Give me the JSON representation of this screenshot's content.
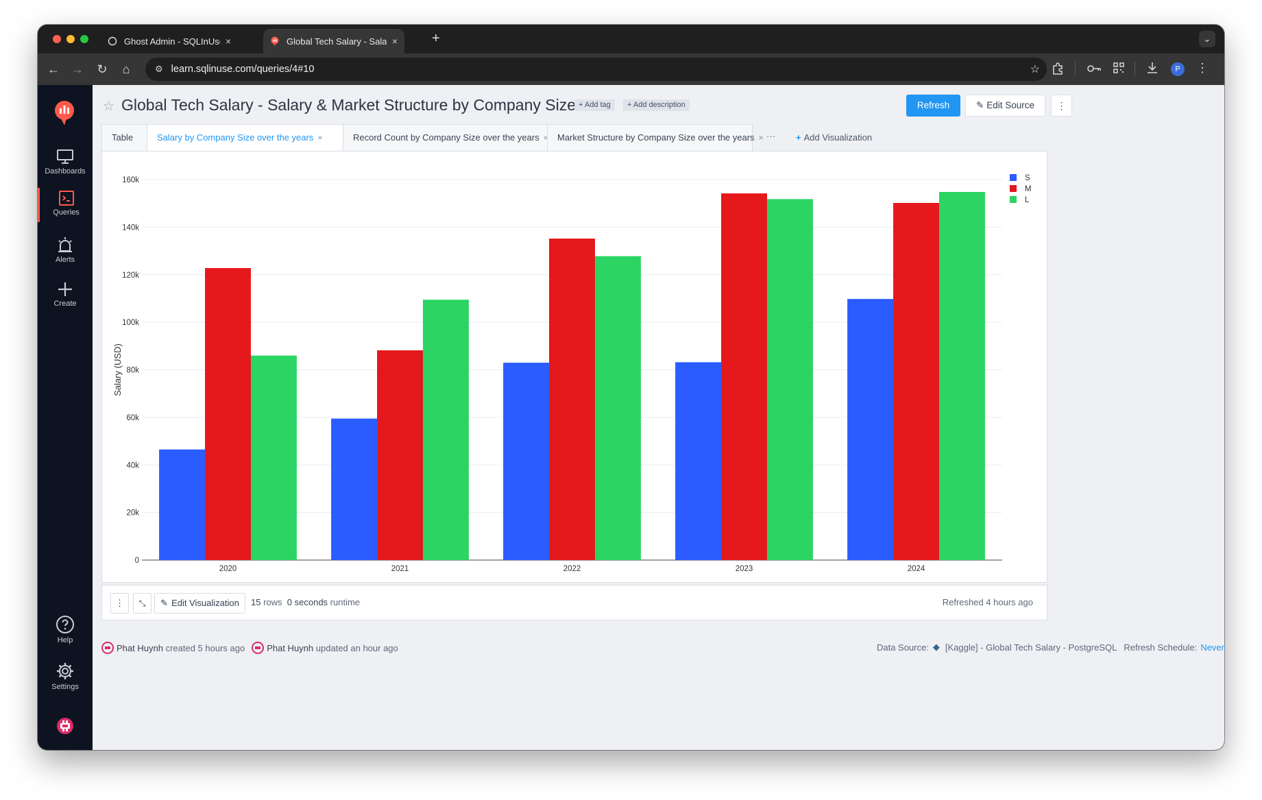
{
  "browser": {
    "tabs": [
      {
        "title": "Ghost Admin - SQLInUse",
        "close": "×"
      },
      {
        "title": "Global Tech Salary - Salary &",
        "close": "×"
      }
    ],
    "new_tab": "+",
    "url": "learn.sqlinuse.com/queries/4#10",
    "profile_initial": "P"
  },
  "sidebar": {
    "items": [
      {
        "label": "Dashboards",
        "icon": "monitor-icon"
      },
      {
        "label": "Queries",
        "icon": "terminal-icon"
      },
      {
        "label": "Alerts",
        "icon": "alarm-icon"
      },
      {
        "label": "Create",
        "icon": "plus-icon"
      },
      {
        "label": "Help",
        "icon": "question-icon"
      },
      {
        "label": "Settings",
        "icon": "gear-icon"
      }
    ],
    "accent": "#ff5a4b"
  },
  "header": {
    "title": "Global Tech Salary - Salary & Market Structure by Company Size",
    "add_tag": "+ Add tag",
    "add_description": "+ Add description",
    "refresh": "Refresh",
    "edit_source": "Edit Source"
  },
  "viz_tabs": {
    "tabs": [
      {
        "label": "Table"
      },
      {
        "label": "Salary by Company Size over the years",
        "close": "×"
      },
      {
        "label": "Record Count by Company Size over the years",
        "close": "×"
      },
      {
        "label": "Market Structure by Company Size over the years",
        "close": "×"
      }
    ],
    "more": "···",
    "add_visualization": "Add Visualization"
  },
  "chart_data": {
    "type": "bar",
    "categories": [
      "2020",
      "2021",
      "2022",
      "2023",
      "2024"
    ],
    "series": [
      {
        "name": "S",
        "color": "#2a5cff",
        "values": [
          46500,
          59500,
          83000,
          83200,
          109800
        ]
      },
      {
        "name": "M",
        "color": "#e5181b",
        "values": [
          122800,
          88200,
          135200,
          154200,
          150200
        ]
      },
      {
        "name": "L",
        "color": "#2bd463",
        "values": [
          86000,
          109500,
          127800,
          151800,
          154800
        ]
      }
    ],
    "ylabel": "Salary (USD)",
    "yticks": [
      "0",
      "20k",
      "40k",
      "60k",
      "80k",
      "100k",
      "120k",
      "140k",
      "160k"
    ],
    "ylim": [
      0,
      160000
    ],
    "grid": true,
    "legend": "top-right"
  },
  "footer": {
    "edit_visualization": "Edit Visualization",
    "rows_count": "15",
    "rows_word": "rows",
    "runtime_value": "0 seconds",
    "runtime_word": "runtime",
    "refreshed": "Refreshed 4 hours ago"
  },
  "meta": {
    "creator": "Phat Huynh",
    "created": "created 5 hours ago",
    "updater": "Phat Huynh",
    "updated": "updated an hour ago",
    "data_source_label": "Data Source:",
    "data_source": "[Kaggle] - Global Tech Salary - PostgreSQL",
    "schedule_label": "Refresh Schedule:",
    "schedule_value": "Never"
  }
}
